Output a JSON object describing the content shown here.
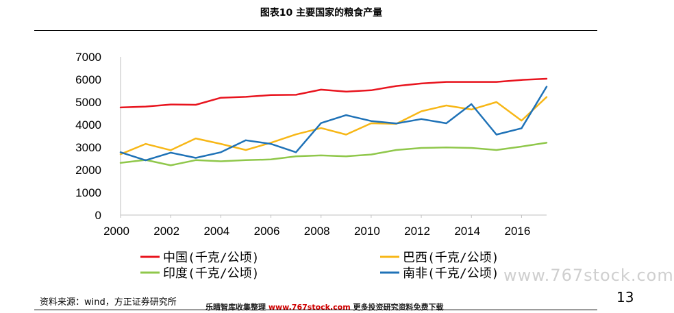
{
  "page": {
    "title": "图表10  主要国家的粮食产量",
    "source": "资料来源：wind，方正证券研究所",
    "page_number": "13",
    "watermark_bar_left": "乐晴智库收集整理 ",
    "watermark_bar_site": "www.767stock.com",
    "watermark_bar_right": " 更多投资研究资料免费下载",
    "watermark_corner": "www.767stock.com"
  },
  "chart_data": {
    "type": "line",
    "title": "",
    "xlabel": "",
    "ylabel": "",
    "x": [
      2000,
      2001,
      2002,
      2003,
      2004,
      2005,
      2006,
      2007,
      2008,
      2009,
      2010,
      2011,
      2012,
      2013,
      2014,
      2015,
      2016,
      2017
    ],
    "xticks": [
      "2000",
      "2002",
      "2004",
      "2006",
      "2008",
      "2010",
      "2012",
      "2014",
      "2016"
    ],
    "xlim": [
      2000,
      2017
    ],
    "yticks": [
      "0",
      "1000",
      "2000",
      "3000",
      "4000",
      "5000",
      "6000",
      "7000"
    ],
    "ylim": [
      0,
      7000
    ],
    "grid": false,
    "legend_position": "bottom",
    "series": [
      {
        "name": "中国(千克/公顷)",
        "color": "#e8141e",
        "values": [
          4760,
          4800,
          4890,
          4880,
          5190,
          5230,
          5310,
          5320,
          5550,
          5460,
          5520,
          5710,
          5820,
          5890,
          5890,
          5890,
          5980,
          6030
        ]
      },
      {
        "name": "巴西(千克/公顷)",
        "color": "#f7b717",
        "values": [
          2690,
          3150,
          2870,
          3390,
          3150,
          2880,
          3200,
          3570,
          3850,
          3560,
          4060,
          4040,
          4590,
          4850,
          4670,
          5000,
          4180,
          5220
        ]
      },
      {
        "name": "印度(千克/公顷)",
        "color": "#8fc74a",
        "values": [
          2310,
          2440,
          2200,
          2430,
          2380,
          2430,
          2460,
          2600,
          2640,
          2600,
          2680,
          2880,
          2970,
          2990,
          2970,
          2880,
          3030,
          3200
        ]
      },
      {
        "name": "南非(千克/公顷)",
        "color": "#1f72b7",
        "values": [
          2780,
          2420,
          2760,
          2530,
          2780,
          3310,
          3150,
          2780,
          4070,
          4420,
          4160,
          4050,
          4250,
          4060,
          4910,
          3560,
          3840,
          5680
        ]
      }
    ]
  }
}
